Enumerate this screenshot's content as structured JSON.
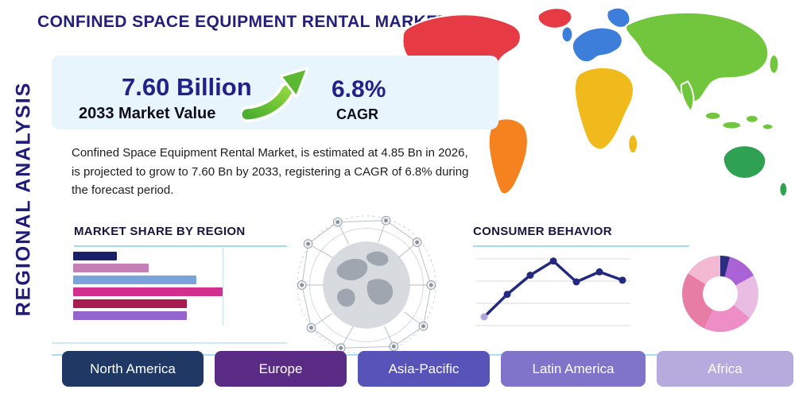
{
  "header": {
    "title": "CONFINED SPACE EQUIPMENT RENTAL MARKET"
  },
  "side": {
    "vertical_label": "REGIONAL ANALYSIS"
  },
  "stats": {
    "market_value": "7.60 Billion",
    "market_value_label": "2033 Market Value",
    "cagr_value": "6.8%",
    "cagr_label": "CAGR",
    "description": "Confined Space Equipment Rental Market, is estimated at 4.85 Bn in 2026, is projected to grow to 7.60 Bn by 2033, registering a CAGR of 6.8% during the forecast period.",
    "accent_green": "#5cb832",
    "panel_bg": "#e8f5fc"
  },
  "sections": {
    "market_share_title": "MARKET SHARE BY REGION",
    "consumer_behavior_title": "CONSUMER BEHAVIOR"
  },
  "region_buttons": [
    {
      "label": "North America",
      "color": "#203864"
    },
    {
      "label": "Europe",
      "color": "#5a2b84"
    },
    {
      "label": "Asia-Pacific",
      "color": "#5753b8"
    },
    {
      "label": "Latin America",
      "color": "#7f74ca"
    },
    {
      "label": "Africa",
      "color": "#b6abdd"
    }
  ],
  "map": {
    "region_colors": {
      "greenland": "#e63a45",
      "north-america": "#e63a45",
      "south-america": "#f5821f",
      "europe": "#3d7edb",
      "africa": "#f0b91c",
      "asia": "#72c63e",
      "southeast-asia": "#72c63e",
      "australia": "#2fa152"
    }
  },
  "chart_data": [
    {
      "type": "bar",
      "title": "MARKET SHARE BY REGION",
      "orientation": "horizontal",
      "values": [
        22,
        38,
        62,
        75,
        57,
        57
      ],
      "colors": [
        "#1b2169",
        "#c47fb4",
        "#7aa3dc",
        "#d2308e",
        "#a81d50",
        "#9266cc"
      ],
      "xlim": [
        0,
        80
      ],
      "grid": true
    },
    {
      "type": "line",
      "title": "CONSUMER BEHAVIOR",
      "x": [
        1,
        2,
        3,
        4,
        5,
        6,
        7
      ],
      "values": [
        18,
        45,
        68,
        85,
        60,
        72,
        62
      ],
      "ylim": [
        0,
        100
      ],
      "line_color": "#242a80",
      "first_point_color": "#b3a4dd",
      "grid": true
    },
    {
      "type": "pie",
      "title": "consumer-behavior-donut",
      "donut": true,
      "segments": [
        {
          "value": 4,
          "color": "#2b2e7e"
        },
        {
          "value": 13,
          "color": "#a963d4"
        },
        {
          "value": 19,
          "color": "#e9bce4"
        },
        {
          "value": 21,
          "color": "#ee8ec6"
        },
        {
          "value": 27,
          "color": "#e77da4"
        },
        {
          "value": 16,
          "color": "#f3b9d2"
        }
      ]
    }
  ]
}
